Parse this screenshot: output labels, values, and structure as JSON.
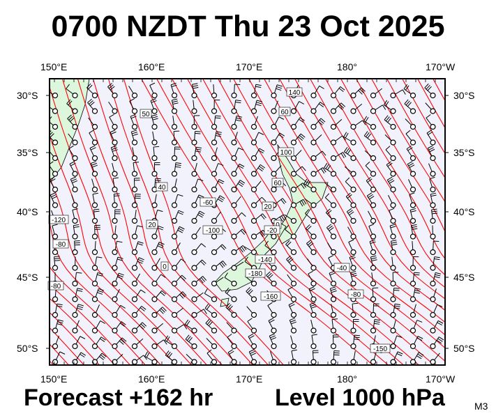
{
  "title": "0700 NZDT Thu 23 Oct 2025",
  "footer": {
    "forecast": "Forecast +162 hr",
    "level": "Level 1000 hPa",
    "model": "M3"
  },
  "map": {
    "lon_labels": [
      "150°E",
      "160°E",
      "170°E",
      "180°",
      "170°W"
    ],
    "lat_labels": [
      "30°S",
      "35°S",
      "40°S",
      "45°S",
      "50°S"
    ],
    "contour_labels": [
      "140",
      "100",
      "60",
      "50",
      "40",
      "20",
      "0",
      "-20",
      "-40",
      "-60",
      "-80",
      "-100",
      "-120",
      "-140",
      "-160",
      "-180",
      "-150"
    ],
    "colors": {
      "ocean": "#f2f2fc",
      "land": "#ddf7dd",
      "contour": "#ff0000",
      "barb": "#000000"
    },
    "layers": [
      "contours",
      "wind-barbs",
      "coastlines"
    ]
  }
}
